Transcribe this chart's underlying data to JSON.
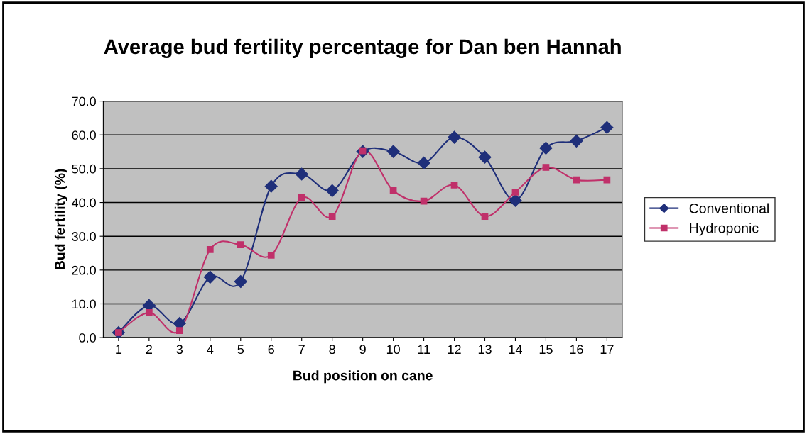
{
  "chart_data": {
    "type": "line",
    "title": "Average bud fertility percentage for Dan ben Hannah",
    "xlabel": "Bud position on cane",
    "ylabel": "Bud fertility (%)",
    "categories": [
      "1",
      "2",
      "3",
      "4",
      "5",
      "6",
      "7",
      "8",
      "9",
      "10",
      "11",
      "12",
      "13",
      "14",
      "15",
      "16",
      "17"
    ],
    "series": [
      {
        "name": "Conventional",
        "color": "#1f2f7a",
        "marker": "diamond",
        "values": [
          1.5,
          9.5,
          4.2,
          17.9,
          16.6,
          44.8,
          48.4,
          43.5,
          55.1,
          55.1,
          51.7,
          59.3,
          53.4,
          40.6,
          56.1,
          58.2,
          62.2
        ]
      },
      {
        "name": "Hydroponic",
        "color": "#c0306a",
        "marker": "square",
        "values": [
          1.5,
          7.4,
          2.1,
          26.1,
          27.5,
          24.4,
          41.4,
          35.9,
          55.3,
          43.5,
          40.4,
          45.2,
          35.9,
          43.1,
          50.4,
          46.7,
          46.7
        ]
      }
    ],
    "ylim": [
      0,
      70
    ],
    "yticks": [
      {
        "value": 0,
        "label": "0.0"
      },
      {
        "value": 10,
        "label": "10.0"
      },
      {
        "value": 20,
        "label": "20.0"
      },
      {
        "value": 30,
        "label": "30.0"
      },
      {
        "value": 40,
        "label": "40.0"
      },
      {
        "value": 50,
        "label": "50.0"
      },
      {
        "value": 60,
        "label": "60.0"
      },
      {
        "value": 70,
        "label": "70.0"
      }
    ],
    "grid": "y",
    "legend": "right",
    "line_style": "solid"
  }
}
